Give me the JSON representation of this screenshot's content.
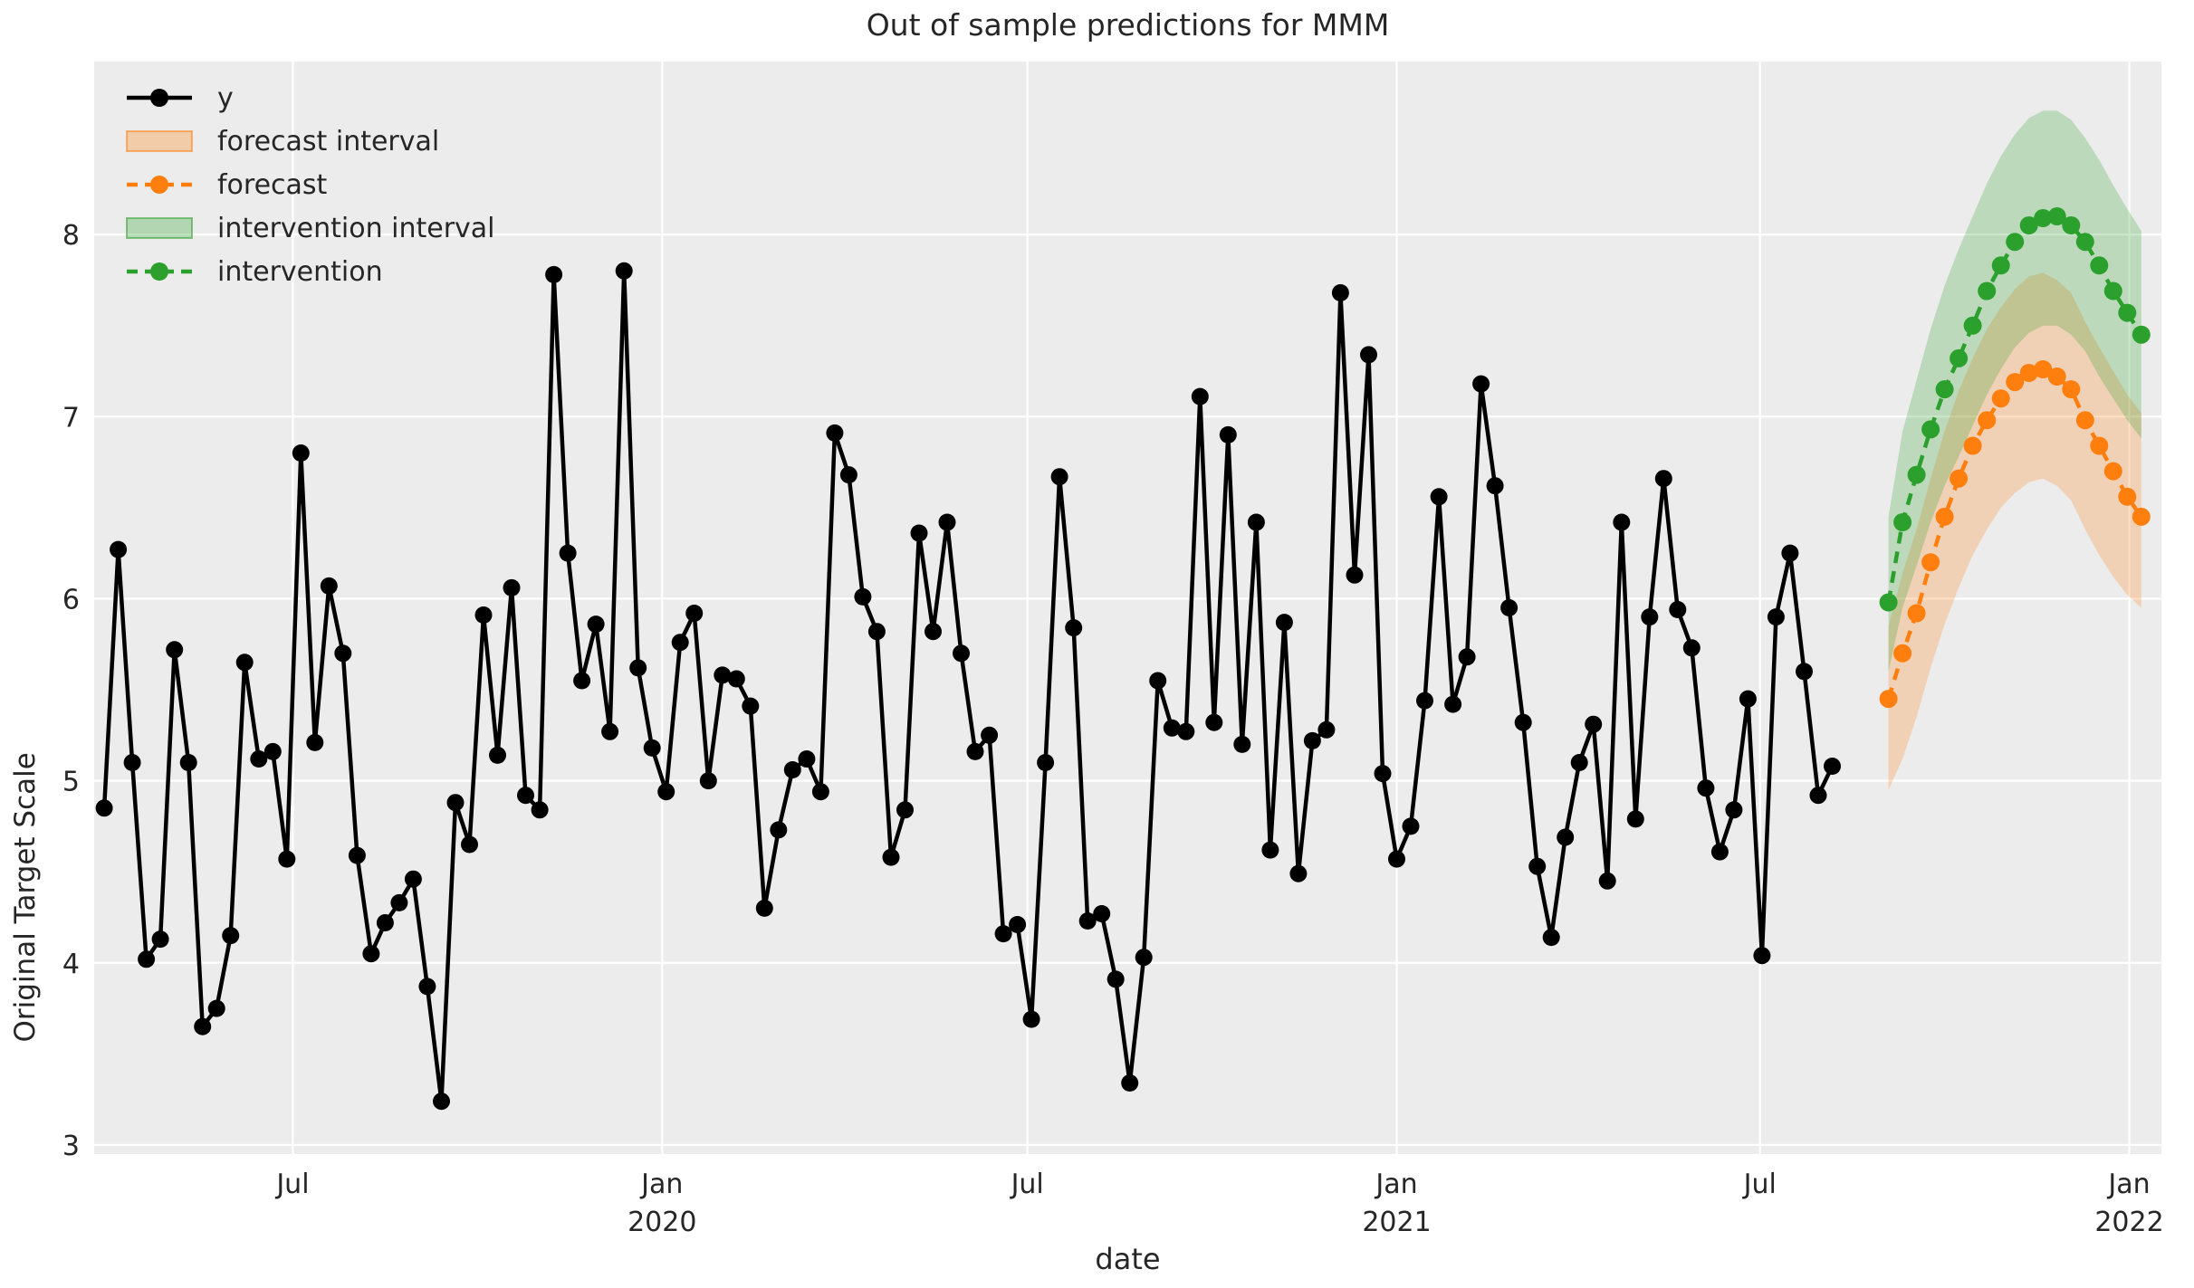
{
  "title": "Out of sample predictions for MMM",
  "axes": {
    "x_label": "date",
    "y_label": "Original Target Scale"
  },
  "legend": {
    "items": [
      {
        "label": "y",
        "type": "line-marker",
        "color": "#000000"
      },
      {
        "label": "forecast interval",
        "type": "patch",
        "color": "#ff7f0e"
      },
      {
        "label": "forecast",
        "type": "dashed-marker",
        "color": "#ff7f0e"
      },
      {
        "label": "intervention interval",
        "type": "patch",
        "color": "#2ca02c"
      },
      {
        "label": "intervention",
        "type": "dashed-marker",
        "color": "#2ca02c"
      }
    ]
  },
  "chart_data": {
    "type": "line",
    "title": "Out of sample predictions for MMM",
    "xlabel": "date",
    "ylabel": "Original Target Scale",
    "background": "#ececec",
    "grid_color": "#ffffff",
    "grid": true,
    "legend_position": "upper left",
    "ylim": [
      2.95,
      8.95
    ],
    "y_ticks": [
      3,
      4,
      5,
      6,
      7,
      8
    ],
    "x_range": {
      "start": "2019-03-24",
      "end": "2022-01-17"
    },
    "x_ticks": [
      {
        "date": "2019-07-01",
        "label": "Jul",
        "year": ""
      },
      {
        "date": "2020-01-01",
        "label": "Jan",
        "year": "2020"
      },
      {
        "date": "2020-07-01",
        "label": "Jul",
        "year": ""
      },
      {
        "date": "2021-01-01",
        "label": "Jan",
        "year": "2021"
      },
      {
        "date": "2021-07-01",
        "label": "Jul",
        "year": ""
      },
      {
        "date": "2022-01-01",
        "label": "Jan",
        "year": "2022"
      }
    ],
    "series": {
      "y": {
        "name": "y",
        "color": "#000000",
        "style": "solid",
        "start_date": "2019-03-29",
        "step_days": 7,
        "values": [
          4.85,
          6.27,
          5.1,
          4.02,
          4.13,
          5.72,
          5.1,
          3.65,
          3.75,
          4.15,
          5.65,
          5.12,
          5.16,
          4.57,
          6.8,
          5.21,
          6.07,
          5.7,
          4.59,
          4.05,
          4.22,
          4.33,
          4.46,
          3.87,
          3.24,
          4.88,
          4.65,
          5.91,
          5.14,
          6.06,
          4.92,
          4.84,
          7.78,
          6.25,
          5.55,
          5.86,
          5.27,
          7.8,
          5.62,
          5.18,
          4.94,
          5.76,
          5.92,
          5.0,
          5.58,
          5.56,
          5.41,
          4.3,
          4.73,
          5.06,
          5.12,
          4.94,
          6.91,
          6.68,
          6.01,
          5.82,
          4.58,
          4.84,
          6.36,
          5.82,
          6.42,
          5.7,
          5.16,
          5.25,
          4.16,
          4.21,
          3.69,
          5.1,
          6.67,
          5.84,
          4.23,
          4.27,
          3.91,
          3.34,
          4.03,
          5.55,
          5.29,
          5.27,
          7.11,
          5.32,
          6.9,
          5.2,
          6.42,
          4.62,
          5.87,
          4.49,
          5.22,
          5.28,
          7.68,
          6.13,
          7.34,
          5.04,
          4.57,
          4.75,
          5.44,
          6.56,
          5.42,
          5.68,
          7.18,
          6.62,
          5.95,
          5.32,
          4.53,
          4.14,
          4.69,
          5.1,
          5.31,
          4.45,
          6.42,
          4.79,
          5.9,
          6.66,
          5.94,
          5.73,
          4.96,
          4.61,
          4.84,
          5.45,
          4.04,
          5.9,
          6.25,
          5.6,
          4.92,
          5.08
        ]
      },
      "forecast": {
        "name": "forecast",
        "color": "#ff7f0e",
        "style": "dashed",
        "start_date": "2021-09-03",
        "step_days": 7,
        "values": [
          5.45,
          5.7,
          5.92,
          6.2,
          6.45,
          6.66,
          6.84,
          6.98,
          7.1,
          7.19,
          7.24,
          7.26,
          7.22,
          7.15,
          6.98,
          6.84,
          6.7,
          6.56,
          6.45
        ],
        "interval_lower": [
          4.95,
          5.12,
          5.35,
          5.62,
          5.86,
          6.06,
          6.24,
          6.38,
          6.5,
          6.58,
          6.64,
          6.66,
          6.62,
          6.54,
          6.38,
          6.24,
          6.12,
          6.02,
          5.95
        ],
        "interval_upper": [
          5.85,
          6.14,
          6.38,
          6.66,
          6.92,
          7.14,
          7.32,
          7.48,
          7.6,
          7.7,
          7.77,
          7.79,
          7.75,
          7.68,
          7.52,
          7.38,
          7.25,
          7.12,
          7.02
        ]
      },
      "intervention": {
        "name": "intervention",
        "color": "#2ca02c",
        "style": "dashed",
        "start_date": "2021-09-03",
        "step_days": 7,
        "values": [
          5.98,
          6.42,
          6.68,
          6.93,
          7.15,
          7.32,
          7.5,
          7.69,
          7.83,
          7.96,
          8.05,
          8.09,
          8.1,
          8.05,
          7.96,
          7.83,
          7.69,
          7.57,
          7.45
        ],
        "interval_lower": [
          5.6,
          5.95,
          6.18,
          6.42,
          6.62,
          6.78,
          6.95,
          7.12,
          7.26,
          7.38,
          7.46,
          7.5,
          7.5,
          7.45,
          7.36,
          7.22,
          7.1,
          6.98,
          6.88
        ],
        "interval_upper": [
          6.45,
          6.92,
          7.2,
          7.48,
          7.72,
          7.92,
          8.1,
          8.28,
          8.43,
          8.55,
          8.64,
          8.68,
          8.68,
          8.63,
          8.53,
          8.41,
          8.27,
          8.14,
          8.02
        ]
      }
    }
  }
}
